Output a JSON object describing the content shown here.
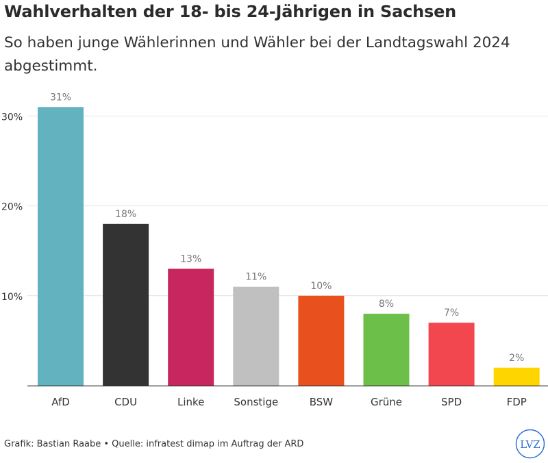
{
  "header": {
    "title": "Wahlverhalten der 18- bis 24-Jährigen in Sachsen",
    "subtitle": "So haben junge Wählerinnen und Wähler bei der Landtagswahl 2024 abgestimmt."
  },
  "chart_data": {
    "type": "bar",
    "categories": [
      "AfD",
      "CDU",
      "Linke",
      "Sonstige",
      "BSW",
      "Grüne",
      "SPD",
      "FDP"
    ],
    "values": [
      31,
      18,
      13,
      11,
      10,
      8,
      7,
      2
    ],
    "value_labels": [
      "31%",
      "18%",
      "13%",
      "11%",
      "10%",
      "8%",
      "7%",
      "2%"
    ],
    "colors": [
      "#62B2C0",
      "#333333",
      "#C8265F",
      "#C0C0C0",
      "#E8501E",
      "#6CC04A",
      "#F2474F",
      "#FFD500"
    ],
    "yticks": [
      10,
      20,
      30
    ],
    "ytick_labels": [
      "10%",
      "20%",
      "30%"
    ],
    "ylim": [
      0,
      33
    ],
    "grid": true
  },
  "footer": {
    "source": "Grafik: Bastian Raabe • Quelle: infratest dimap im Auftrag der ARD"
  },
  "logo": {
    "text": "LVZ",
    "color": "#2E6FD6"
  }
}
